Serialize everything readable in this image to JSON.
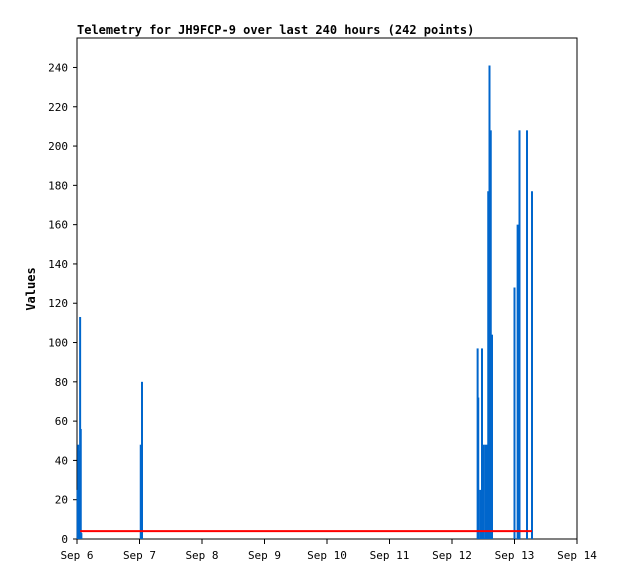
{
  "chart_data": {
    "type": "bar",
    "title": "Telemetry for JH9FCP-9 over last 240 hours (242 points)",
    "xlabel": "",
    "ylabel": "Values",
    "ylim": [
      0,
      255
    ],
    "x_ticks": [
      "Sep 6",
      "Sep 7",
      "Sep 8",
      "Sep 9",
      "Sep 10",
      "Sep 11",
      "Sep 12",
      "Sep 13",
      "Sep 14"
    ],
    "y_ticks": [
      0,
      20,
      40,
      60,
      80,
      100,
      120,
      140,
      160,
      180,
      200,
      220,
      240
    ],
    "grid": false,
    "legend": "none",
    "colors": {
      "bars": "#0066cc",
      "baseline": "#ff0000"
    },
    "baseline": {
      "start_day": 6.05,
      "end_day": 13.28,
      "value": 4
    },
    "series": [
      {
        "points": [
          {
            "day": 6.01,
            "value": 25
          },
          {
            "day": 6.02,
            "value": 48
          },
          {
            "day": 6.04,
            "value": 45
          },
          {
            "day": 6.05,
            "value": 113
          },
          {
            "day": 6.06,
            "value": 56
          },
          {
            "day": 6.07,
            "value": 3
          },
          {
            "day": 7.02,
            "value": 48
          },
          {
            "day": 7.04,
            "value": 80
          },
          {
            "day": 12.41,
            "value": 97
          },
          {
            "day": 12.42,
            "value": 72
          },
          {
            "day": 12.45,
            "value": 25
          },
          {
            "day": 12.48,
            "value": 97
          },
          {
            "day": 12.5,
            "value": 48
          },
          {
            "day": 12.53,
            "value": 48
          },
          {
            "day": 12.56,
            "value": 48
          },
          {
            "day": 12.58,
            "value": 177
          },
          {
            "day": 12.6,
            "value": 241
          },
          {
            "day": 12.62,
            "value": 208
          },
          {
            "day": 12.64,
            "value": 104
          },
          {
            "day": 13.0,
            "value": 128
          },
          {
            "day": 13.05,
            "value": 160
          },
          {
            "day": 13.08,
            "value": 208
          },
          {
            "day": 13.2,
            "value": 208
          },
          {
            "day": 13.28,
            "value": 177
          }
        ]
      }
    ]
  }
}
